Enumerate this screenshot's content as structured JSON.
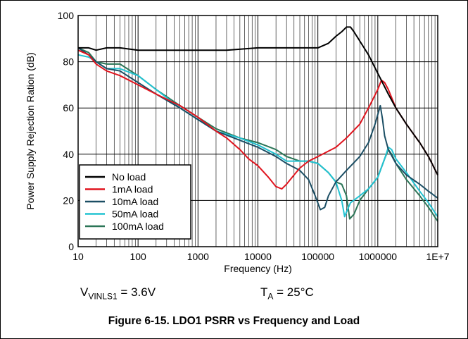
{
  "chart_data": {
    "type": "line",
    "caption": "Figure 6-15. LDO1 PSRR vs Frequency and Load",
    "xlabel": "Frequency (Hz)",
    "ylabel": "Power Supply Rejection Ration (dB)",
    "x_scale": "log",
    "xlim": [
      10,
      10000000
    ],
    "ylim": [
      0,
      100
    ],
    "x_ticks": [
      10,
      100,
      1000,
      10000,
      100000,
      1000000,
      10000000
    ],
    "x_tick_labels": [
      "10",
      "100",
      "1000",
      "10000",
      "100000",
      "1000000",
      "1E+7"
    ],
    "y_ticks": [
      0,
      20,
      40,
      60,
      80,
      100
    ],
    "y_tick_labels": [
      "0",
      "20",
      "40",
      "60",
      "80",
      "100"
    ],
    "grid": true,
    "legend_position": "bottom-left",
    "conditions": {
      "v_main": "V",
      "v_sub": "VINLS1",
      "v_value": " = 3.6V",
      "t_main": "T",
      "t_sub": "A",
      "t_value": " = 25°C"
    },
    "series": [
      {
        "name": "No load",
        "color": "#000000",
        "x": [
          10,
          15,
          20,
          30,
          50,
          100,
          200,
          500,
          1000,
          3000,
          10000,
          30000,
          100000,
          150000,
          200000,
          250000,
          300000,
          350000,
          400000,
          500000,
          700000,
          1000000,
          1500000,
          2000000,
          3000000,
          5000000,
          7000000,
          10000000
        ],
        "y": [
          86,
          86,
          85,
          86,
          86,
          85,
          85,
          85,
          85,
          85,
          86,
          86,
          86,
          88,
          91,
          93,
          95,
          95,
          93,
          89,
          83,
          75,
          66,
          60,
          53,
          45,
          39,
          31
        ]
      },
      {
        "name": "1mA load",
        "color": "#e0141e",
        "x": [
          10,
          15,
          20,
          30,
          50,
          100,
          200,
          500,
          1000,
          2000,
          3000,
          5000,
          7000,
          10000,
          15000,
          20000,
          25000,
          30000,
          40000,
          50000,
          70000,
          100000,
          200000,
          300000,
          500000,
          700000,
          1000000,
          1150000,
          1300000,
          1500000,
          2000000,
          3000000,
          5000000,
          7000000,
          10000000
        ],
        "y": [
          85,
          83,
          79,
          76,
          74,
          70,
          66,
          61,
          56,
          50,
          47,
          42,
          38,
          35,
          30,
          26,
          25,
          27,
          31,
          34,
          37,
          39,
          43,
          47,
          53,
          60,
          68,
          72,
          71,
          68,
          60,
          53,
          45,
          39,
          31
        ]
      },
      {
        "name": "10mA load",
        "color": "#1b4e64",
        "x": [
          10,
          15,
          20,
          30,
          50,
          100,
          200,
          500,
          1000,
          2000,
          5000,
          10000,
          20000,
          30000,
          50000,
          70000,
          90000,
          110000,
          130000,
          150000,
          200000,
          300000,
          500000,
          700000,
          900000,
          1100000,
          1200000,
          1300000,
          1500000,
          2000000,
          3000000,
          5000000,
          7000000,
          10000000
        ],
        "y": [
          86,
          83,
          80,
          77,
          76,
          71,
          66,
          60,
          55,
          50,
          46,
          43,
          39,
          36,
          33,
          29,
          22,
          16,
          17,
          22,
          28,
          33,
          39,
          45,
          53,
          61,
          55,
          48,
          42,
          36,
          31,
          27,
          24,
          21
        ]
      },
      {
        "name": "50mA load",
        "color": "#22c3d2",
        "x": [
          10,
          15,
          20,
          30,
          50,
          100,
          200,
          500,
          1000,
          2000,
          5000,
          10000,
          20000,
          30000,
          50000,
          70000,
          100000,
          150000,
          200000,
          250000,
          280000,
          300000,
          350000,
          500000,
          700000,
          1000000,
          1300000,
          1500000,
          1700000,
          2000000,
          3000000,
          5000000,
          7000000,
          10000000
        ],
        "y": [
          83,
          82,
          80,
          77,
          77,
          74,
          68,
          60,
          55,
          50,
          47,
          44,
          40,
          37,
          37,
          37,
          36,
          32,
          28,
          20,
          13,
          15,
          19,
          22,
          25,
          30,
          38,
          43,
          42,
          38,
          32,
          24,
          19,
          13
        ]
      },
      {
        "name": "100mA load",
        "color": "#2b7557",
        "x": [
          10,
          15,
          20,
          30,
          50,
          100,
          200,
          500,
          1000,
          2000,
          5000,
          10000,
          20000,
          30000,
          50000,
          70000,
          100000,
          150000,
          200000,
          250000,
          300000,
          340000,
          400000,
          500000,
          700000,
          1000000,
          1300000,
          1500000,
          1700000,
          2000000,
          3000000,
          5000000,
          7000000,
          10000000
        ],
        "y": [
          86,
          84,
          80,
          79,
          79,
          74,
          68,
          61,
          56,
          51,
          47,
          45,
          42,
          39,
          37,
          37,
          36,
          32,
          28,
          27,
          22,
          12,
          14,
          20,
          25,
          30,
          38,
          42,
          40,
          36,
          29,
          22,
          17,
          11
        ]
      }
    ]
  }
}
